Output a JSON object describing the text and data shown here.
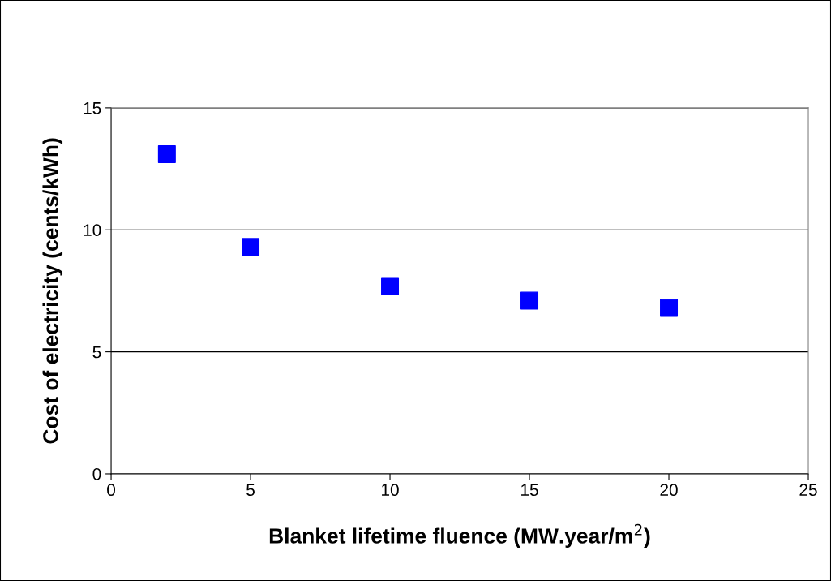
{
  "chart_data": {
    "type": "scatter",
    "xlabel": "Blanket lifetime fluence (MW.year/m$^{2}$)",
    "ylabel": "Cost of electricity (cents/kWh)",
    "x": [
      2,
      5,
      10,
      15,
      20
    ],
    "series": [
      {
        "color": "#0000ff",
        "values": [
          13.1,
          9.3,
          7.7,
          7.1,
          6.8
        ]
      }
    ],
    "xlim": [
      0,
      25
    ],
    "xticks": [
      0,
      5,
      10,
      15,
      20,
      25
    ],
    "ylim": [
      0,
      15
    ],
    "yticks": [
      0,
      5,
      10,
      15
    ],
    "grid": "y",
    "marker": "square",
    "legend": false
  }
}
